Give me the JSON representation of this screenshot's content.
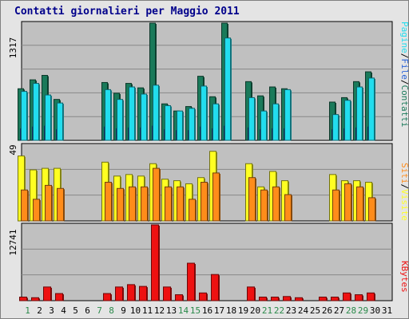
{
  "title": "Contatti giornalieri per Maggio 2011",
  "colors": {
    "contatti": "#1a7a5a",
    "file": "#2a64d8",
    "pagine": "#22ddee",
    "visite": "#ffff22",
    "siti": "#ff8c1a",
    "kbytes": "#ee1111",
    "weekend_day": "#2a8a4a",
    "weekday": "#000000",
    "panel_bg": "#c0c0c0"
  },
  "chart_data": [
    {
      "type": "bar",
      "panel": "top",
      "ymax_label": "1317",
      "ymax": 1317,
      "right_label": {
        "pagine": "Pagine",
        "sep1": "/",
        "file": "File",
        "sep2": "/",
        "contatti": "Contatti"
      },
      "categories": [
        "1",
        "2",
        "3",
        "4",
        "5",
        "6",
        "7",
        "8",
        "9",
        "10",
        "11",
        "12",
        "13",
        "14",
        "15",
        "16",
        "17",
        "18",
        "19",
        "20",
        "21",
        "22",
        "23",
        "24",
        "25",
        "26",
        "27",
        "28",
        "29",
        "30",
        "31"
      ],
      "series": [
        {
          "name": "Contatti",
          "values": [
            580,
            680,
            730,
            460,
            0,
            0,
            0,
            650,
            530,
            640,
            590,
            1317,
            410,
            330,
            380,
            720,
            490,
            1317,
            0,
            660,
            500,
            600,
            580,
            0,
            0,
            0,
            430,
            480,
            660,
            770,
            0
          ]
        },
        {
          "name": "File",
          "values": [
            130,
            150,
            160,
            120,
            0,
            0,
            0,
            150,
            130,
            140,
            140,
            160,
            120,
            110,
            110,
            150,
            130,
            160,
            0,
            140,
            120,
            130,
            130,
            0,
            0,
            0,
            120,
            130,
            140,
            150,
            0
          ]
        },
        {
          "name": "Pagine",
          "values": [
            550,
            640,
            510,
            420,
            0,
            0,
            0,
            570,
            460,
            600,
            520,
            620,
            390,
            330,
            360,
            610,
            410,
            1150,
            0,
            480,
            330,
            410,
            570,
            0,
            0,
            0,
            290,
            450,
            600,
            700,
            0
          ]
        }
      ]
    },
    {
      "type": "bar",
      "panel": "middle",
      "ymax_label": "49",
      "ymax": 49,
      "right_label": {
        "siti": "Siti",
        "sep": "/",
        "visite": "Visite"
      },
      "categories": [
        "1",
        "2",
        "3",
        "4",
        "5",
        "6",
        "7",
        "8",
        "9",
        "10",
        "11",
        "12",
        "13",
        "14",
        "15",
        "16",
        "17",
        "18",
        "19",
        "20",
        "21",
        "22",
        "23",
        "24",
        "25",
        "26",
        "27",
        "28",
        "29",
        "30",
        "31"
      ],
      "series": [
        {
          "name": "Visite",
          "values": [
            42,
            33,
            34,
            34,
            0,
            0,
            0,
            38,
            29,
            30,
            29,
            37,
            27,
            26,
            24,
            28,
            45,
            0,
            0,
            37,
            22,
            32,
            26,
            0,
            0,
            0,
            30,
            26,
            26,
            25,
            0
          ]
        },
        {
          "name": "Siti",
          "values": [
            20,
            14,
            23,
            21,
            0,
            0,
            0,
            25,
            21,
            22,
            22,
            34,
            22,
            22,
            14,
            25,
            31,
            0,
            0,
            28,
            20,
            22,
            17,
            0,
            0,
            0,
            20,
            24,
            22,
            15,
            0
          ]
        }
      ]
    },
    {
      "type": "bar",
      "panel": "bottom",
      "ymax_label": "12741",
      "ymax": 12741,
      "right_label": {
        "kbytes": "KBytes"
      },
      "categories": [
        "1",
        "2",
        "3",
        "4",
        "5",
        "6",
        "7",
        "8",
        "9",
        "10",
        "11",
        "12",
        "13",
        "14",
        "15",
        "16",
        "17",
        "18",
        "19",
        "20",
        "21",
        "22",
        "23",
        "24",
        "25",
        "26",
        "27",
        "28",
        "29",
        "30",
        "31"
      ],
      "series": [
        {
          "name": "KBytes",
          "values": [
            600,
            500,
            2300,
            1200,
            0,
            0,
            0,
            1200,
            2300,
            2700,
            2400,
            12741,
            2300,
            1000,
            6300,
            1300,
            4400,
            0,
            0,
            2300,
            600,
            600,
            700,
            500,
            0,
            600,
            600,
            1300,
            1000,
            1300,
            0
          ]
        }
      ]
    }
  ],
  "weekend_days": [
    1,
    7,
    8,
    14,
    15,
    21,
    22,
    28,
    29
  ]
}
